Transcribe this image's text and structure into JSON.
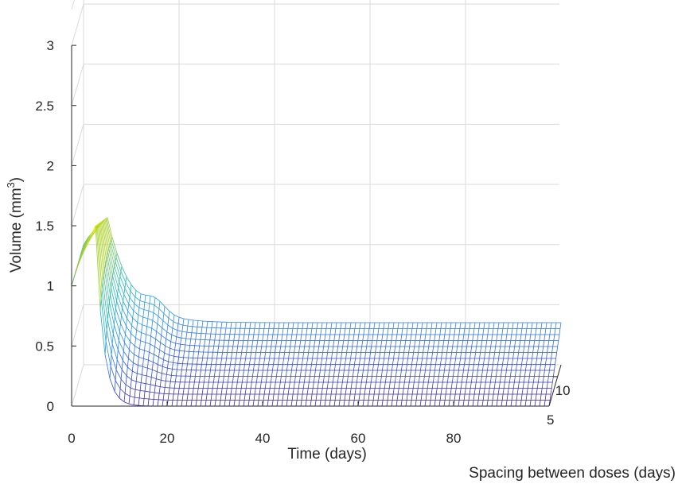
{
  "chart_data": {
    "type": "surface",
    "xlabel": "Time (days)",
    "ylabel_base": "Volume (mm",
    "ylabel_sup": "3",
    "ylabel_end": ")",
    "zlabel": "Spacing between doses (days)",
    "x_ticks": [
      "0",
      "20",
      "40",
      "60",
      "80"
    ],
    "y_ticks": [
      "0",
      "0.5",
      "1",
      "1.5",
      "2",
      "2.5",
      "3"
    ],
    "spacing_ticks": [
      "5",
      "10"
    ],
    "time_range": [
      0,
      100
    ],
    "spacing_range": [
      5,
      12
    ],
    "volume_range": [
      0,
      3
    ],
    "grid": true,
    "colormap": [
      "#3e26a8",
      "#2e87f7",
      "#1fbfb8",
      "#9fc93a",
      "#f9fb15"
    ],
    "surface_model": {
      "initial_volume": 1.0,
      "peak_volume": 1.5,
      "peak_time": 5,
      "min_volume_first_spacing": 0.0,
      "plateau_volume_last_spacing": 0.35
    }
  }
}
